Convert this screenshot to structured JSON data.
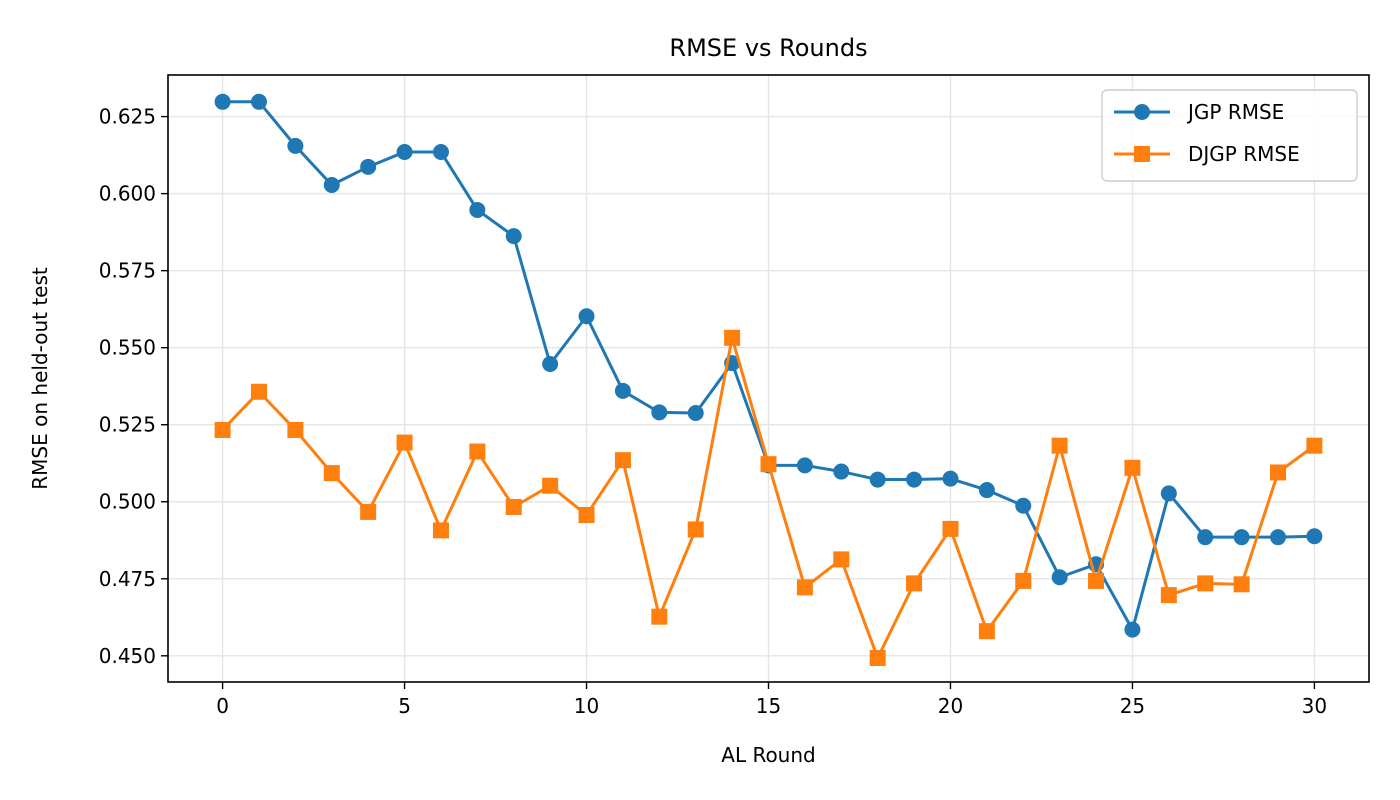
{
  "chart_data": {
    "type": "line",
    "title": "RMSE vs Rounds",
    "xlabel": "AL Round",
    "ylabel": "RMSE on held-out test",
    "xlim": [
      -1.5,
      31.5
    ],
    "ylim": [
      0.4415,
      0.6385
    ],
    "xticks": [
      0,
      5,
      10,
      15,
      20,
      25,
      30
    ],
    "xtick_labels": [
      "0",
      "5",
      "10",
      "15",
      "20",
      "25",
      "30"
    ],
    "yticks": [
      0.45,
      0.475,
      0.5,
      0.525,
      0.55,
      0.575,
      0.6,
      0.625
    ],
    "ytick_labels": [
      "0.450",
      "0.475",
      "0.500",
      "0.525",
      "0.550",
      "0.575",
      "0.600",
      "0.625"
    ],
    "grid": true,
    "legend_position": "top-right",
    "x": [
      0,
      1,
      2,
      3,
      4,
      5,
      6,
      7,
      8,
      9,
      10,
      11,
      12,
      13,
      14,
      15,
      16,
      17,
      18,
      19,
      20,
      21,
      22,
      23,
      24,
      25,
      26,
      27,
      28,
      29,
      30
    ],
    "series": [
      {
        "name": "JGP RMSE",
        "color": "#1f77b4",
        "marker": "circle",
        "values": [
          0.6298,
          0.6298,
          0.6155,
          0.6028,
          0.6087,
          0.6135,
          0.6135,
          0.5947,
          0.5862,
          0.5447,
          0.5602,
          0.536,
          0.529,
          0.5288,
          0.545,
          0.5118,
          0.5118,
          0.5098,
          0.5072,
          0.5072,
          0.5075,
          0.5038,
          0.4987,
          0.4755,
          0.4797,
          0.4585,
          0.5027,
          0.4885,
          0.4885,
          0.4885,
          0.4888
        ]
      },
      {
        "name": "DJGP RMSE",
        "color": "#ff7f0e",
        "marker": "square",
        "values": [
          0.5233,
          0.5357,
          0.5233,
          0.5093,
          0.4967,
          0.5192,
          0.4907,
          0.5163,
          0.4983,
          0.5052,
          0.4957,
          0.5135,
          0.4627,
          0.491,
          0.5532,
          0.5122,
          0.4722,
          0.4813,
          0.4493,
          0.4735,
          0.4912,
          0.458,
          0.4743,
          0.5182,
          0.4743,
          0.511,
          0.4697,
          0.4735,
          0.4732,
          0.5095,
          0.5182
        ]
      }
    ]
  }
}
